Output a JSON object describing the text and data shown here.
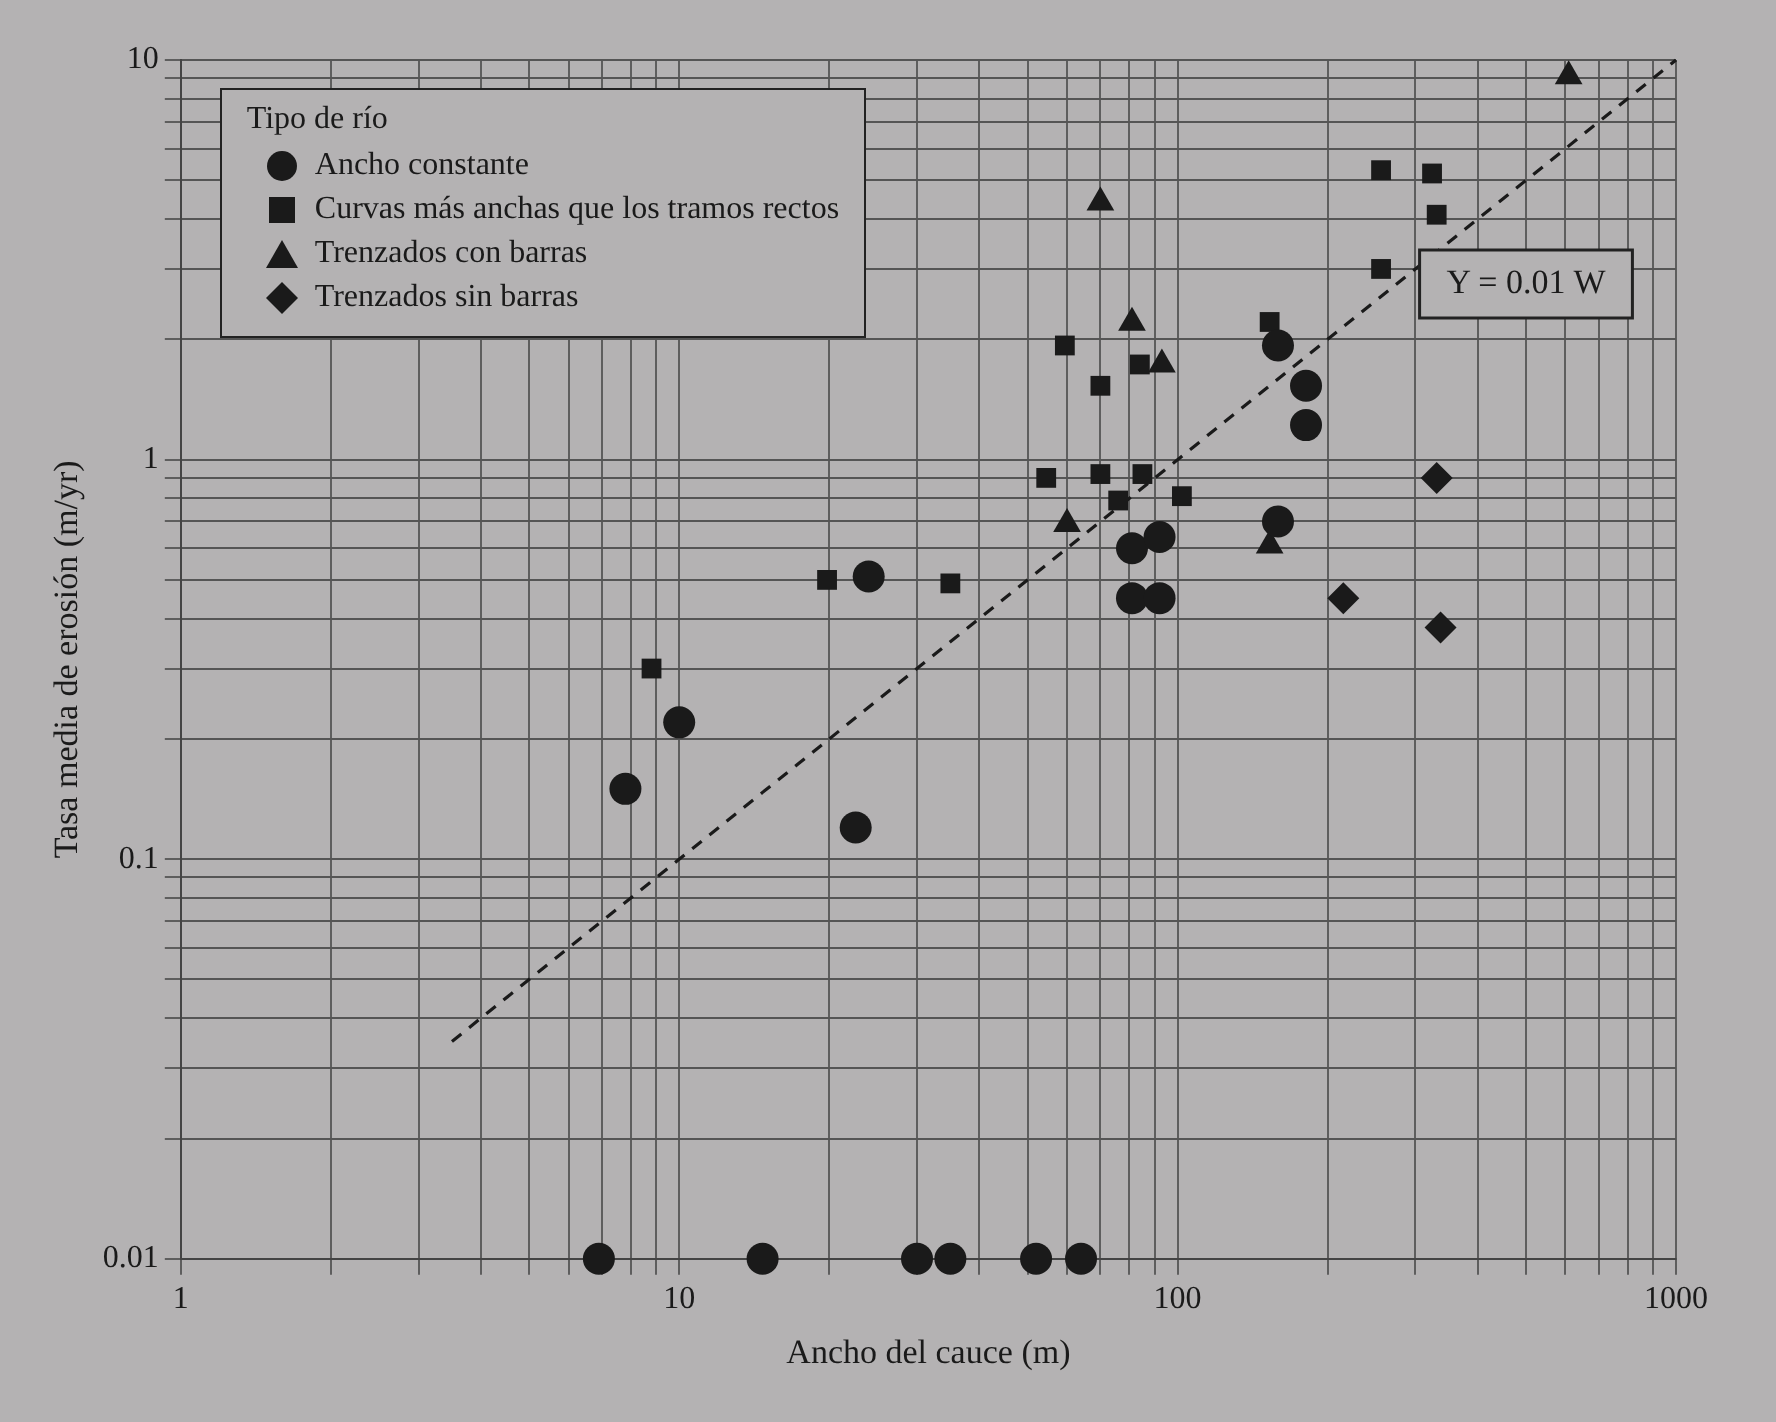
{
  "chart_data": {
    "type": "scatter",
    "xlabel": "Ancho del cauce (m)",
    "ylabel": "Tasa media de erosión (m/yr)",
    "legend_title": "Tipo de río",
    "legend": "top left",
    "log": "xy",
    "grid": true,
    "xlim": [
      1,
      1000
    ],
    "ylim": [
      0.01,
      10
    ],
    "xticks": [
      1,
      {
        "value": 2,
        "label": null
      },
      {
        "value": 3,
        "label": null
      },
      {
        "value": 4,
        "label": null
      },
      {
        "value": 5,
        "label": null
      },
      {
        "value": 6,
        "label": null
      },
      {
        "value": 7,
        "label": null
      },
      {
        "value": 8,
        "label": null
      },
      {
        "value": 9,
        "label": null
      },
      10,
      {
        "value": 20,
        "label": null
      },
      {
        "value": 30,
        "label": null
      },
      {
        "value": 40,
        "label": null
      },
      {
        "value": 50,
        "label": null
      },
      {
        "value": 60,
        "label": null
      },
      {
        "value": 70,
        "label": null
      },
      {
        "value": 80,
        "label": null
      },
      {
        "value": 90,
        "label": null
      },
      100,
      {
        "value": 200,
        "label": null
      },
      {
        "value": 300,
        "label": null
      },
      {
        "value": 400,
        "label": null
      },
      {
        "value": 500,
        "label": null
      },
      {
        "value": 600,
        "label": null
      },
      {
        "value": 700,
        "label": null
      },
      {
        "value": 800,
        "label": null
      },
      {
        "value": 900,
        "label": null
      },
      1000
    ],
    "yticks": [
      0.01,
      {
        "value": 0.02,
        "label": null
      },
      {
        "value": 0.03,
        "label": null
      },
      {
        "value": 0.04,
        "label": null
      },
      {
        "value": 0.05,
        "label": null
      },
      {
        "value": 0.06,
        "label": null
      },
      {
        "value": 0.07,
        "label": null
      },
      {
        "value": 0.08,
        "label": null
      },
      {
        "value": 0.09,
        "label": null
      },
      0.1,
      {
        "value": 0.2,
        "label": null
      },
      {
        "value": 0.3,
        "label": null
      },
      {
        "value": 0.4,
        "label": null
      },
      {
        "value": 0.5,
        "label": null
      },
      {
        "value": 0.6,
        "label": null
      },
      {
        "value": 0.7,
        "label": null
      },
      {
        "value": 0.8,
        "label": null
      },
      {
        "value": 0.9,
        "label": null
      },
      1,
      {
        "value": 2,
        "label": null
      },
      {
        "value": 3,
        "label": null
      },
      {
        "value": 4,
        "label": null
      },
      {
        "value": 5,
        "label": null
      },
      {
        "value": 6,
        "label": null
      },
      {
        "value": 7,
        "label": null
      },
      {
        "value": 8,
        "label": null
      },
      {
        "value": 9,
        "label": null
      },
      10
    ],
    "annotations": [
      "Y = 0.01 W"
    ],
    "series": [
      {
        "name": "Ancho constante",
        "color": "#1a1a1a",
        "marker": "circle",
        "x": [
          7.8,
          10,
          24,
          22.6,
          81,
          81,
          92,
          92,
          159,
          181,
          181,
          159,
          6.9,
          14.7,
          30,
          35,
          52,
          64
        ],
        "values": [
          0.15,
          0.22,
          0.51,
          0.12,
          0.6,
          0.45,
          0.64,
          0.45,
          1.93,
          1.53,
          1.22,
          0.7,
          0.01,
          0.01,
          0.01,
          0.01,
          0.01,
          0.01
        ]
      },
      {
        "name": "Curvas más anchas que los tramos rectos",
        "color": "#1a1a1a",
        "marker": "square",
        "x": [
          8.8,
          19.8,
          35,
          54.5,
          59.4,
          70,
          84,
          70,
          76,
          85,
          102,
          153,
          256,
          324,
          331,
          256
        ],
        "values": [
          0.3,
          0.5,
          0.49,
          0.9,
          1.93,
          1.53,
          1.73,
          0.92,
          0.79,
          0.92,
          0.81,
          2.21,
          5.3,
          5.2,
          4.1,
          3.0
        ]
      },
      {
        "name": "Trenzados con barras",
        "color": "#1a1a1a",
        "marker": "triangle",
        "x": [
          70,
          81,
          93,
          60,
          153,
          609
        ],
        "values": [
          4.4,
          2.2,
          1.73,
          0.69,
          0.61,
          9.1
        ]
      },
      {
        "name": "Trenzados sin barras",
        "color": "#1a1a1a",
        "marker": "diamond",
        "x": [
          331,
          215,
          337
        ],
        "values": [
          0.9,
          0.45,
          0.38
        ]
      },
      {
        "type": "line",
        "color": "#1a1a1a",
        "marker": "none",
        "line_style": "dashed",
        "x": [
          3.5,
          1000
        ],
        "values": [
          0.035,
          10
        ]
      }
    ]
  }
}
